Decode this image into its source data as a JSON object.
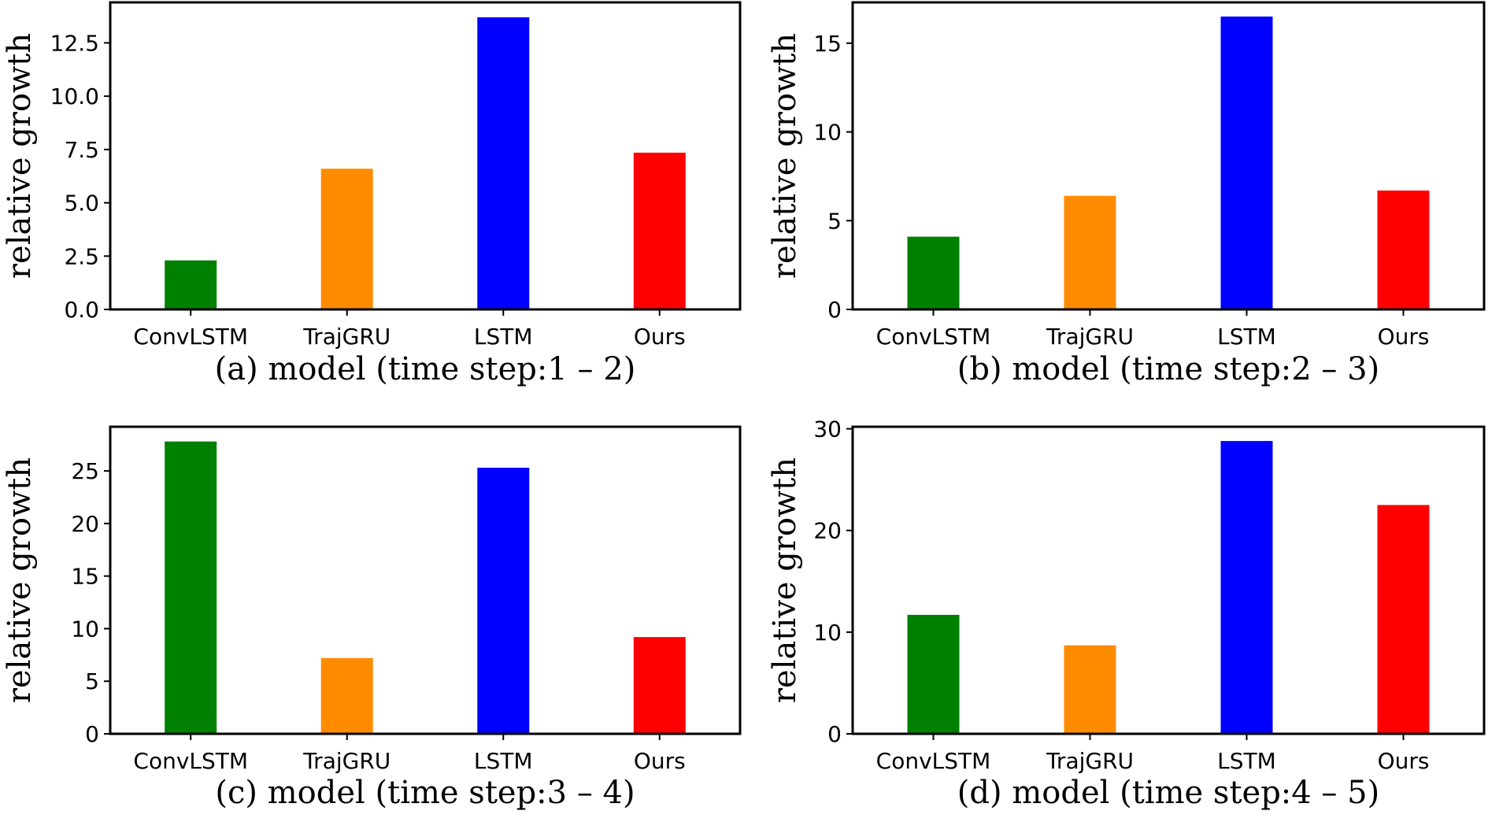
{
  "chart_data": [
    {
      "type": "bar",
      "caption": "(a) model (time step:1 – 2)",
      "ylabel": "relative growth",
      "categories": [
        "ConvLSTM",
        "TrajGRU",
        "LSTM",
        "Ours"
      ],
      "values": [
        2.3,
        6.6,
        13.7,
        7.35
      ],
      "colors": [
        "#008000",
        "#ff8c00",
        "#0000ff",
        "#ff0000"
      ],
      "ylim": [
        0,
        14.4
      ],
      "yticks": [
        "0.0",
        "2.5",
        "5.0",
        "7.5",
        "10.0",
        "12.5"
      ],
      "ytick_values": [
        0,
        2.5,
        5,
        7.5,
        10,
        12.5
      ],
      "grid": false
    },
    {
      "type": "bar",
      "caption": "(b) model (time step:2 – 3)",
      "ylabel": "relative growth",
      "categories": [
        "ConvLSTM",
        "TrajGRU",
        "LSTM",
        "Ours"
      ],
      "values": [
        4.1,
        6.4,
        16.5,
        6.7
      ],
      "colors": [
        "#008000",
        "#ff8c00",
        "#0000ff",
        "#ff0000"
      ],
      "ylim": [
        0,
        17.3
      ],
      "yticks": [
        "0",
        "5",
        "10",
        "15"
      ],
      "ytick_values": [
        0,
        5,
        10,
        15
      ],
      "grid": false
    },
    {
      "type": "bar",
      "caption": "(c) model (time step:3 – 4)",
      "ylabel": "relative growth",
      "categories": [
        "ConvLSTM",
        "TrajGRU",
        "LSTM",
        "Ours"
      ],
      "values": [
        27.8,
        7.2,
        25.3,
        9.2
      ],
      "colors": [
        "#008000",
        "#ff8c00",
        "#0000ff",
        "#ff0000"
      ],
      "ylim": [
        0,
        29.2
      ],
      "yticks": [
        "0",
        "5",
        "10",
        "15",
        "20",
        "25"
      ],
      "ytick_values": [
        0,
        5,
        10,
        15,
        20,
        25
      ],
      "grid": false
    },
    {
      "type": "bar",
      "caption": "(d) model (time step:4 – 5)",
      "ylabel": "relative growth",
      "categories": [
        "ConvLSTM",
        "TrajGRU",
        "LSTM",
        "Ours"
      ],
      "values": [
        11.7,
        8.7,
        28.8,
        22.5
      ],
      "colors": [
        "#008000",
        "#ff8c00",
        "#0000ff",
        "#ff0000"
      ],
      "ylim": [
        0,
        30.2
      ],
      "yticks": [
        "0",
        "10",
        "20",
        "30"
      ],
      "ytick_values": [
        0,
        10,
        20,
        30
      ],
      "grid": false
    }
  ]
}
